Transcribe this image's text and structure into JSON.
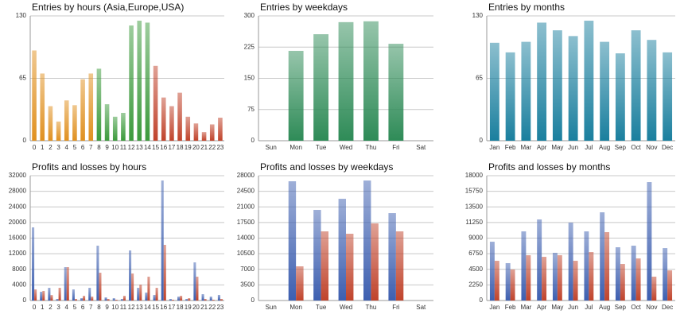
{
  "chart_data": [
    {
      "type": "bar",
      "title": "Entries by hours (Asia,Europe,USA)",
      "categories": [
        "0",
        "1",
        "2",
        "3",
        "4",
        "5",
        "6",
        "7",
        "8",
        "9",
        "10",
        "11",
        "12",
        "13",
        "14",
        "15",
        "16",
        "17",
        "18",
        "19",
        "20",
        "21",
        "22",
        "23"
      ],
      "values": [
        94,
        70,
        36,
        20,
        42,
        37,
        64,
        70,
        75,
        38,
        25,
        29,
        120,
        125,
        123,
        78,
        45,
        36,
        50,
        25,
        18,
        9,
        17,
        24
      ],
      "colors": [
        "#e0901f",
        "#e0901f",
        "#e0901f",
        "#e0901f",
        "#e0901f",
        "#e0901f",
        "#e0901f",
        "#e0901f",
        "#3c9a3c",
        "#3c9a3c",
        "#3c9a3c",
        "#3c9a3c",
        "#3c9a3c",
        "#3c9a3c",
        "#3c9a3c",
        "#c0432b",
        "#c0432b",
        "#c0432b",
        "#c0432b",
        "#c0432b",
        "#c0432b",
        "#c0432b",
        "#c0432b",
        "#c0432b"
      ],
      "ylim": [
        0,
        130
      ],
      "yticks": [
        0,
        65,
        130
      ],
      "grid": true
    },
    {
      "type": "bar",
      "title": "Entries by weekdays",
      "categories": [
        "Sun",
        "Mon",
        "Tue",
        "Wed",
        "Thu",
        "Fri",
        "Sat"
      ],
      "values": [
        0,
        216,
        256,
        285,
        287,
        233,
        0
      ],
      "color": "#2e8b57",
      "ylim": [
        0,
        300
      ],
      "yticks": [
        0,
        75,
        150,
        225,
        300
      ],
      "grid": true
    },
    {
      "type": "bar",
      "title": "Entries by months",
      "categories": [
        "Jan",
        "Feb",
        "Mar",
        "Apr",
        "May",
        "Jun",
        "Jul",
        "Aug",
        "Sep",
        "Oct",
        "Nov",
        "Dec"
      ],
      "values": [
        102,
        92,
        103,
        123,
        115,
        109,
        125,
        103,
        91,
        115,
        105,
        92
      ],
      "color": "#1a7f9e",
      "ylim": [
        0,
        130
      ],
      "yticks": [
        0,
        65,
        130
      ],
      "grid": true
    },
    {
      "type": "bar",
      "title": "Profits and losses by hours",
      "categories": [
        "0",
        "1",
        "2",
        "3",
        "4",
        "5",
        "6",
        "7",
        "8",
        "9",
        "10",
        "11",
        "12",
        "13",
        "14",
        "15",
        "16",
        "17",
        "18",
        "19",
        "20",
        "21",
        "22",
        "23"
      ],
      "series": [
        {
          "color": "#3d5fb0",
          "values": [
            18750,
            2250,
            3260,
            400,
            8560,
            2850,
            600,
            3260,
            14060,
            800,
            600,
            400,
            12840,
            3260,
            2040,
            1430,
            30770,
            400,
            1000,
            400,
            9780,
            1630,
            1000,
            1430
          ]
        },
        {
          "color": "#c0432b",
          "values": [
            2850,
            2450,
            1400,
            3260,
            8560,
            400,
            1200,
            1000,
            7130,
            400,
            200,
            1200,
            6930,
            4080,
            6110,
            3260,
            14270,
            200,
            1200,
            600,
            6110,
            400,
            200,
            400
          ]
        }
      ],
      "ylim": [
        0,
        32000
      ],
      "yticks": [
        0,
        4000,
        8000,
        12000,
        16000,
        20000,
        24000,
        28000,
        32000
      ],
      "grid": true
    },
    {
      "type": "bar",
      "title": "Profits and losses by weekdays",
      "categories": [
        "Sun",
        "Mon",
        "Tue",
        "Wed",
        "Thu",
        "Fri",
        "Sat"
      ],
      "series": [
        {
          "color": "#3d5fb0",
          "values": [
            0,
            26750,
            20330,
            22820,
            26920,
            19610,
            0
          ]
        },
        {
          "color": "#c0432b",
          "values": [
            0,
            7670,
            15510,
            14980,
            17300,
            15510,
            0
          ]
        }
      ],
      "ylim": [
        0,
        28000
      ],
      "yticks": [
        0,
        3500,
        7000,
        10500,
        14000,
        17500,
        21000,
        24500,
        28000
      ],
      "grid": true
    },
    {
      "type": "bar",
      "title": "Profits and losses by months",
      "categories": [
        "Jan",
        "Feb",
        "Mar",
        "Apr",
        "May",
        "Jun",
        "Jul",
        "Aug",
        "Sep",
        "Oct",
        "Nov",
        "Dec"
      ],
      "series": [
        {
          "color": "#3d5fb0",
          "values": [
            8480,
            5390,
            9970,
            11690,
            6880,
            11230,
            9970,
            12720,
            7680,
            7910,
            17080,
            7560
          ]
        },
        {
          "color": "#c0432b",
          "values": [
            5730,
            4470,
            6530,
            6300,
            6530,
            5730,
            6990,
            9860,
            5270,
            6070,
            3440,
            4350
          ]
        }
      ],
      "ylim": [
        0,
        18000
      ],
      "yticks": [
        0,
        2250,
        4500,
        6750,
        9000,
        11250,
        13500,
        15750,
        18000
      ],
      "grid": true
    }
  ]
}
